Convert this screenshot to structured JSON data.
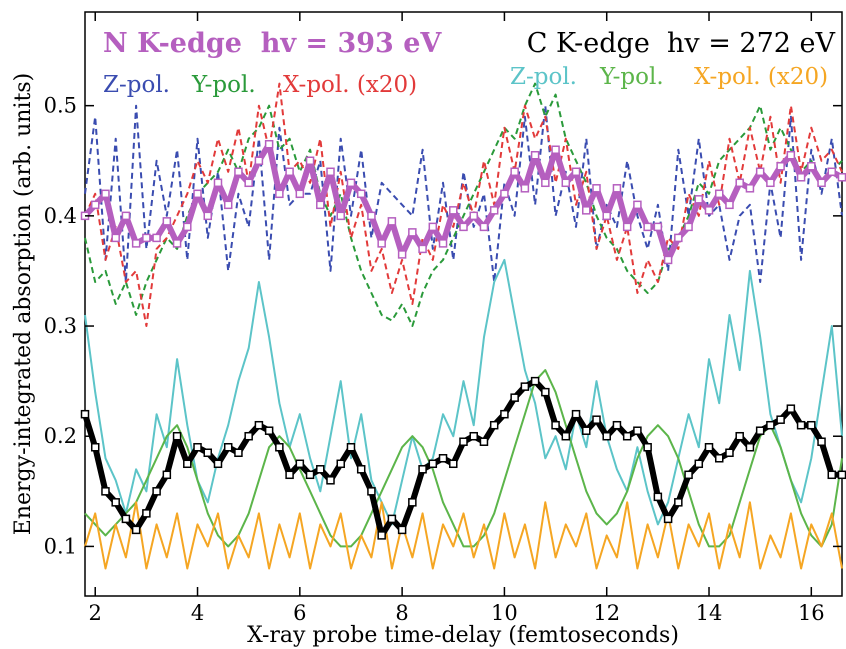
{
  "chart_data": {
    "type": "line",
    "xlabel": "X-ray probe time-delay (femtoseconds)",
    "ylabel": "Energy-integrated absorption (arb. units)",
    "xlim": [
      1.8,
      16.6
    ],
    "ylim": [
      0.055,
      0.585
    ],
    "xticks": [
      2,
      4,
      6,
      8,
      10,
      12,
      14,
      16
    ],
    "yticks": [
      0.1,
      0.2,
      0.3,
      0.4,
      0.5
    ],
    "grid": false,
    "legend_position": "top",
    "legend": {
      "n_title": "N K-edge  hv = 393 eV",
      "c_title": "C K-edge  hv = 272 eV",
      "n_entries": [
        "Z-pol.",
        "Y-pol.",
        "X-pol. (x20)"
      ],
      "c_entries": [
        "Z-pol.",
        "Y-pol.",
        "X-pol. (x20)"
      ]
    },
    "colors": {
      "n_total": "#b55fbf",
      "c_total": "#000000",
      "n_z": "#3a4cb0",
      "n_y": "#2a9a3a",
      "n_x": "#e23a3a",
      "c_z": "#5cc4c8",
      "c_y": "#5cb54a",
      "c_x": "#f5a623"
    },
    "series": [
      {
        "name": "N K-edge total",
        "style": "thick-markers",
        "color": "#b55fbf",
        "points": [
          [
            1.8,
            0.4
          ],
          [
            2.0,
            0.41
          ],
          [
            2.2,
            0.42
          ],
          [
            2.4,
            0.38
          ],
          [
            2.6,
            0.4
          ],
          [
            2.8,
            0.375
          ],
          [
            3.0,
            0.38
          ],
          [
            3.2,
            0.38
          ],
          [
            3.4,
            0.395
          ],
          [
            3.6,
            0.375
          ],
          [
            3.8,
            0.39
          ],
          [
            4.0,
            0.42
          ],
          [
            4.2,
            0.4
          ],
          [
            4.4,
            0.43
          ],
          [
            4.6,
            0.41
          ],
          [
            4.8,
            0.44
          ],
          [
            5.0,
            0.43
          ],
          [
            5.2,
            0.45
          ],
          [
            5.4,
            0.465
          ],
          [
            5.6,
            0.42
          ],
          [
            5.8,
            0.44
          ],
          [
            6.0,
            0.42
          ],
          [
            6.2,
            0.45
          ],
          [
            6.4,
            0.41
          ],
          [
            6.6,
            0.44
          ],
          [
            6.8,
            0.4
          ],
          [
            7.0,
            0.43
          ],
          [
            7.2,
            0.42
          ],
          [
            7.4,
            0.4
          ],
          [
            7.6,
            0.375
          ],
          [
            7.8,
            0.395
          ],
          [
            8.0,
            0.365
          ],
          [
            8.2,
            0.385
          ],
          [
            8.4,
            0.37
          ],
          [
            8.6,
            0.39
          ],
          [
            8.8,
            0.375
          ],
          [
            9.0,
            0.405
          ],
          [
            9.2,
            0.39
          ],
          [
            9.4,
            0.4
          ],
          [
            9.6,
            0.39
          ],
          [
            9.8,
            0.405
          ],
          [
            10.0,
            0.42
          ],
          [
            10.2,
            0.44
          ],
          [
            10.4,
            0.425
          ],
          [
            10.6,
            0.455
          ],
          [
            10.8,
            0.43
          ],
          [
            11.0,
            0.46
          ],
          [
            11.2,
            0.43
          ],
          [
            11.4,
            0.44
          ],
          [
            11.6,
            0.405
          ],
          [
            11.8,
            0.425
          ],
          [
            12.0,
            0.4
          ],
          [
            12.2,
            0.425
          ],
          [
            12.4,
            0.39
          ],
          [
            12.6,
            0.41
          ],
          [
            12.8,
            0.39
          ],
          [
            13.0,
            0.39
          ],
          [
            13.2,
            0.36
          ],
          [
            13.4,
            0.38
          ],
          [
            13.6,
            0.39
          ],
          [
            13.8,
            0.415
          ],
          [
            14.0,
            0.405
          ],
          [
            14.2,
            0.42
          ],
          [
            14.4,
            0.41
          ],
          [
            14.6,
            0.43
          ],
          [
            14.8,
            0.425
          ],
          [
            15.0,
            0.44
          ],
          [
            15.2,
            0.43
          ],
          [
            15.4,
            0.445
          ],
          [
            15.6,
            0.455
          ],
          [
            15.8,
            0.435
          ],
          [
            16.0,
            0.445
          ],
          [
            16.2,
            0.43
          ],
          [
            16.4,
            0.44
          ],
          [
            16.6,
            0.435
          ]
        ]
      },
      {
        "name": "C K-edge total",
        "style": "thick-markers",
        "color": "#000000",
        "points": [
          [
            1.8,
            0.22
          ],
          [
            2.0,
            0.19
          ],
          [
            2.2,
            0.15
          ],
          [
            2.4,
            0.14
          ],
          [
            2.6,
            0.125
          ],
          [
            2.8,
            0.115
          ],
          [
            3.0,
            0.13
          ],
          [
            3.2,
            0.15
          ],
          [
            3.4,
            0.165
          ],
          [
            3.6,
            0.2
          ],
          [
            3.8,
            0.175
          ],
          [
            4.0,
            0.19
          ],
          [
            4.2,
            0.185
          ],
          [
            4.4,
            0.175
          ],
          [
            4.6,
            0.19
          ],
          [
            4.8,
            0.185
          ],
          [
            5.0,
            0.2
          ],
          [
            5.2,
            0.21
          ],
          [
            5.4,
            0.205
          ],
          [
            5.6,
            0.19
          ],
          [
            5.8,
            0.165
          ],
          [
            6.0,
            0.175
          ],
          [
            6.2,
            0.165
          ],
          [
            6.4,
            0.17
          ],
          [
            6.6,
            0.16
          ],
          [
            6.8,
            0.175
          ],
          [
            7.0,
            0.19
          ],
          [
            7.2,
            0.17
          ],
          [
            7.4,
            0.15
          ],
          [
            7.6,
            0.11
          ],
          [
            7.8,
            0.125
          ],
          [
            8.0,
            0.115
          ],
          [
            8.2,
            0.14
          ],
          [
            8.4,
            0.17
          ],
          [
            8.6,
            0.175
          ],
          [
            8.8,
            0.18
          ],
          [
            9.0,
            0.175
          ],
          [
            9.2,
            0.195
          ],
          [
            9.4,
            0.2
          ],
          [
            9.6,
            0.195
          ],
          [
            9.8,
            0.21
          ],
          [
            10.0,
            0.22
          ],
          [
            10.2,
            0.235
          ],
          [
            10.4,
            0.245
          ],
          [
            10.6,
            0.25
          ],
          [
            10.8,
            0.24
          ],
          [
            11.0,
            0.21
          ],
          [
            11.2,
            0.2
          ],
          [
            11.4,
            0.22
          ],
          [
            11.6,
            0.205
          ],
          [
            11.8,
            0.215
          ],
          [
            12.0,
            0.2
          ],
          [
            12.2,
            0.21
          ],
          [
            12.4,
            0.2
          ],
          [
            12.6,
            0.205
          ],
          [
            12.8,
            0.19
          ],
          [
            13.0,
            0.145
          ],
          [
            13.2,
            0.125
          ],
          [
            13.4,
            0.14
          ],
          [
            13.6,
            0.165
          ],
          [
            13.8,
            0.175
          ],
          [
            14.0,
            0.19
          ],
          [
            14.2,
            0.18
          ],
          [
            14.4,
            0.185
          ],
          [
            14.6,
            0.2
          ],
          [
            14.8,
            0.19
          ],
          [
            15.0,
            0.205
          ],
          [
            15.2,
            0.21
          ],
          [
            15.4,
            0.215
          ],
          [
            15.6,
            0.225
          ],
          [
            15.8,
            0.21
          ],
          [
            16.0,
            0.21
          ],
          [
            16.2,
            0.195
          ],
          [
            16.4,
            0.165
          ],
          [
            16.6,
            0.165
          ]
        ]
      },
      {
        "name": "N Z-pol.",
        "style": "dashed",
        "color": "#3a4cb0",
        "start": 1.8,
        "step": 0.2,
        "values": [
          0.42,
          0.49,
          0.36,
          0.47,
          0.34,
          0.5,
          0.37,
          0.45,
          0.4,
          0.46,
          0.36,
          0.47,
          0.38,
          0.44,
          0.35,
          0.42,
          0.39,
          0.47,
          0.36,
          0.48,
          0.41,
          0.42,
          0.42,
          0.45,
          0.35,
          0.47,
          0.4,
          0.46,
          0.38,
          0.43,
          0.42,
          0.41,
          0.4,
          0.46,
          0.37,
          0.43,
          0.36,
          0.44,
          0.39,
          0.42,
          0.34,
          0.43,
          0.4,
          0.49,
          0.41,
          0.5,
          0.4,
          0.44,
          0.39,
          0.47,
          0.37,
          0.41,
          0.39,
          0.45,
          0.4,
          0.37,
          0.41,
          0.35,
          0.46,
          0.4,
          0.47,
          0.4,
          0.41,
          0.36,
          0.4,
          0.41,
          0.34,
          0.43,
          0.38,
          0.49,
          0.36,
          0.46,
          0.42,
          0.47,
          0.4
        ]
      },
      {
        "name": "N Y-pol.",
        "style": "dashed",
        "color": "#2a9a3a",
        "start": 1.8,
        "step": 0.2,
        "values": [
          0.38,
          0.34,
          0.35,
          0.32,
          0.34,
          0.31,
          0.34,
          0.36,
          0.38,
          0.37,
          0.4,
          0.42,
          0.43,
          0.44,
          0.46,
          0.44,
          0.47,
          0.48,
          0.5,
          0.46,
          0.47,
          0.44,
          0.46,
          0.42,
          0.4,
          0.42,
          0.38,
          0.35,
          0.33,
          0.31,
          0.305,
          0.32,
          0.3,
          0.33,
          0.35,
          0.36,
          0.38,
          0.4,
          0.42,
          0.44,
          0.46,
          0.48,
          0.47,
          0.5,
          0.52,
          0.49,
          0.51,
          0.47,
          0.45,
          0.43,
          0.4,
          0.38,
          0.37,
          0.35,
          0.34,
          0.33,
          0.34,
          0.37,
          0.38,
          0.4,
          0.43,
          0.42,
          0.45,
          0.46,
          0.47,
          0.48,
          0.5,
          0.46,
          0.48,
          0.46,
          0.44,
          0.45,
          0.43,
          0.44,
          0.45
        ]
      },
      {
        "name": "N X-pol. (x20)",
        "style": "dashed",
        "color": "#e23a3a",
        "start": 1.8,
        "step": 0.2,
        "values": [
          0.4,
          0.42,
          0.36,
          0.39,
          0.34,
          0.35,
          0.3,
          0.37,
          0.38,
          0.4,
          0.42,
          0.45,
          0.43,
          0.47,
          0.44,
          0.48,
          0.43,
          0.5,
          0.46,
          0.52,
          0.44,
          0.45,
          0.43,
          0.47,
          0.39,
          0.44,
          0.38,
          0.41,
          0.35,
          0.37,
          0.33,
          0.36,
          0.32,
          0.38,
          0.36,
          0.41,
          0.39,
          0.43,
          0.4,
          0.45,
          0.41,
          0.48,
          0.44,
          0.5,
          0.47,
          0.49,
          0.43,
          0.47,
          0.41,
          0.44,
          0.37,
          0.4,
          0.36,
          0.39,
          0.33,
          0.36,
          0.34,
          0.38,
          0.37,
          0.42,
          0.4,
          0.45,
          0.41,
          0.47,
          0.43,
          0.48,
          0.44,
          0.49,
          0.43,
          0.5,
          0.44,
          0.48,
          0.45,
          0.46,
          0.44
        ]
      },
      {
        "name": "C Z-pol.",
        "style": "solid",
        "color": "#5cc4c8",
        "start": 1.8,
        "step": 0.2,
        "values": [
          0.31,
          0.24,
          0.18,
          0.16,
          0.13,
          0.17,
          0.15,
          0.22,
          0.19,
          0.27,
          0.21,
          0.16,
          0.14,
          0.18,
          0.21,
          0.25,
          0.28,
          0.34,
          0.29,
          0.23,
          0.19,
          0.22,
          0.18,
          0.15,
          0.2,
          0.25,
          0.18,
          0.22,
          0.16,
          0.14,
          0.12,
          0.16,
          0.2,
          0.17,
          0.18,
          0.22,
          0.2,
          0.25,
          0.21,
          0.29,
          0.34,
          0.36,
          0.31,
          0.26,
          0.23,
          0.18,
          0.2,
          0.17,
          0.22,
          0.19,
          0.25,
          0.2,
          0.17,
          0.15,
          0.19,
          0.15,
          0.12,
          0.14,
          0.18,
          0.22,
          0.19,
          0.27,
          0.23,
          0.31,
          0.26,
          0.35,
          0.29,
          0.22,
          0.19,
          0.16,
          0.14,
          0.18,
          0.24,
          0.3,
          0.2
        ]
      },
      {
        "name": "C Y-pol.",
        "style": "solid",
        "color": "#5cb54a",
        "start": 1.8,
        "step": 0.2,
        "values": [
          0.13,
          0.12,
          0.11,
          0.12,
          0.13,
          0.14,
          0.16,
          0.18,
          0.2,
          0.21,
          0.19,
          0.16,
          0.13,
          0.11,
          0.1,
          0.11,
          0.13,
          0.16,
          0.19,
          0.2,
          0.19,
          0.17,
          0.15,
          0.13,
          0.11,
          0.1,
          0.1,
          0.11,
          0.13,
          0.15,
          0.17,
          0.19,
          0.2,
          0.19,
          0.17,
          0.14,
          0.12,
          0.1,
          0.1,
          0.11,
          0.13,
          0.16,
          0.19,
          0.22,
          0.25,
          0.26,
          0.24,
          0.21,
          0.18,
          0.15,
          0.13,
          0.12,
          0.13,
          0.15,
          0.18,
          0.2,
          0.21,
          0.2,
          0.18,
          0.15,
          0.12,
          0.1,
          0.1,
          0.11,
          0.14,
          0.17,
          0.2,
          0.21,
          0.19,
          0.16,
          0.13,
          0.11,
          0.1,
          0.12,
          0.18
        ]
      },
      {
        "name": "C X-pol. (x20)",
        "style": "solid",
        "color": "#f5a623",
        "start": 1.8,
        "step": 0.2,
        "values": [
          0.1,
          0.13,
          0.08,
          0.12,
          0.09,
          0.14,
          0.08,
          0.12,
          0.09,
          0.13,
          0.08,
          0.12,
          0.1,
          0.13,
          0.08,
          0.11,
          0.09,
          0.13,
          0.08,
          0.12,
          0.09,
          0.13,
          0.08,
          0.12,
          0.1,
          0.13,
          0.08,
          0.11,
          0.09,
          0.14,
          0.08,
          0.12,
          0.09,
          0.13,
          0.08,
          0.12,
          0.1,
          0.13,
          0.09,
          0.12,
          0.08,
          0.13,
          0.09,
          0.12,
          0.08,
          0.14,
          0.09,
          0.12,
          0.1,
          0.13,
          0.08,
          0.11,
          0.09,
          0.14,
          0.08,
          0.12,
          0.09,
          0.13,
          0.08,
          0.12,
          0.1,
          0.13,
          0.08,
          0.12,
          0.09,
          0.14,
          0.08,
          0.11,
          0.09,
          0.13,
          0.08,
          0.12,
          0.1,
          0.13,
          0.08
        ]
      }
    ]
  }
}
